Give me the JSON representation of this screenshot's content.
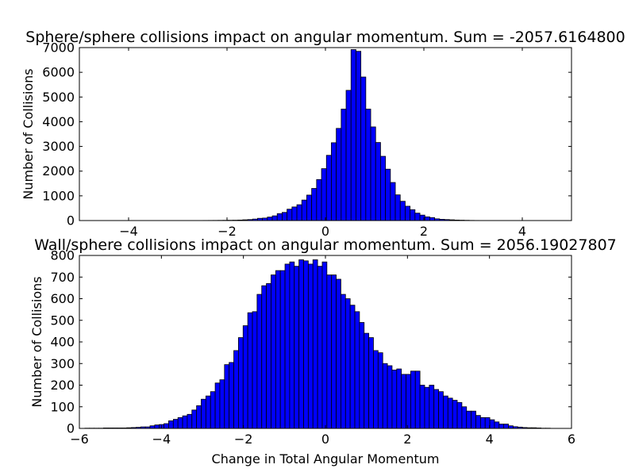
{
  "chart_data": [
    {
      "type": "bar",
      "title": "Sphere/sphere collisions impact on angular momentum. Sum = -2057.6164800",
      "xlabel": "",
      "ylabel": "Number of Collisions",
      "xlim": [
        -5,
        5
      ],
      "ylim": [
        0,
        7000
      ],
      "xticks": [
        -4,
        -2,
        0,
        2,
        4
      ],
      "yticks": [
        0,
        1000,
        2000,
        3000,
        4000,
        5000,
        6000,
        7000
      ],
      "xtick_labels": [
        "−4",
        "−2",
        "0",
        "2",
        "4"
      ],
      "ytick_labels": [
        "0",
        "1000",
        "2000",
        "3000",
        "4000",
        "5000",
        "6000",
        "7000"
      ],
      "bar_color": "#0000ff",
      "bin_start": -3.38,
      "bin_width": 0.1,
      "values": [
        1,
        1,
        1,
        1,
        1,
        1,
        2,
        2,
        3,
        4,
        5,
        6,
        8,
        10,
        12,
        15,
        20,
        30,
        40,
        60,
        90,
        100,
        140,
        190,
        280,
        330,
        460,
        550,
        640,
        830,
        1030,
        1300,
        1660,
        2100,
        2640,
        3150,
        3730,
        4510,
        5270,
        6920,
        6850,
        5810,
        4510,
        3790,
        3160,
        2600,
        2080,
        1540,
        1040,
        780,
        580,
        440,
        300,
        220,
        150,
        120,
        70,
        50,
        40,
        30,
        20,
        15,
        10,
        6,
        4,
        3,
        2,
        1
      ]
    },
    {
      "type": "bar",
      "title": "Wall/sphere collisions impact on angular momentum. Sum = 2056.19027807",
      "xlabel": "Change in Total Angular Momentum",
      "ylabel": "Number of Collisions",
      "xlim": [
        -6,
        6
      ],
      "ylim": [
        0,
        800
      ],
      "xticks": [
        -6,
        -4,
        -2,
        0,
        2,
        4,
        6
      ],
      "yticks": [
        0,
        100,
        200,
        300,
        400,
        500,
        600,
        700,
        800
      ],
      "xtick_labels": [
        "−6",
        "−4",
        "−2",
        "0",
        "2",
        "4",
        "6"
      ],
      "ytick_labels": [
        "0",
        "100",
        "200",
        "300",
        "400",
        "500",
        "600",
        "700",
        "800"
      ],
      "bar_color": "#0000ff",
      "bin_start": -5.98,
      "bin_width": 0.1135,
      "values": [
        0,
        1,
        1,
        1,
        1,
        2,
        2,
        2,
        2,
        2,
        3,
        4,
        5,
        7,
        7,
        12,
        16,
        18,
        22,
        35,
        42,
        50,
        58,
        65,
        85,
        105,
        135,
        150,
        170,
        210,
        225,
        295,
        305,
        360,
        420,
        475,
        535,
        540,
        620,
        660,
        670,
        710,
        730,
        730,
        760,
        770,
        750,
        780,
        775,
        760,
        780,
        750,
        770,
        710,
        710,
        690,
        620,
        600,
        570,
        540,
        490,
        440,
        420,
        360,
        350,
        300,
        290,
        270,
        275,
        250,
        250,
        265,
        265,
        200,
        190,
        200,
        180,
        170,
        150,
        140,
        130,
        120,
        100,
        80,
        80,
        60,
        50,
        50,
        40,
        30,
        20,
        20,
        12,
        8,
        6,
        4,
        3,
        3,
        2,
        1,
        1
      ]
    }
  ]
}
